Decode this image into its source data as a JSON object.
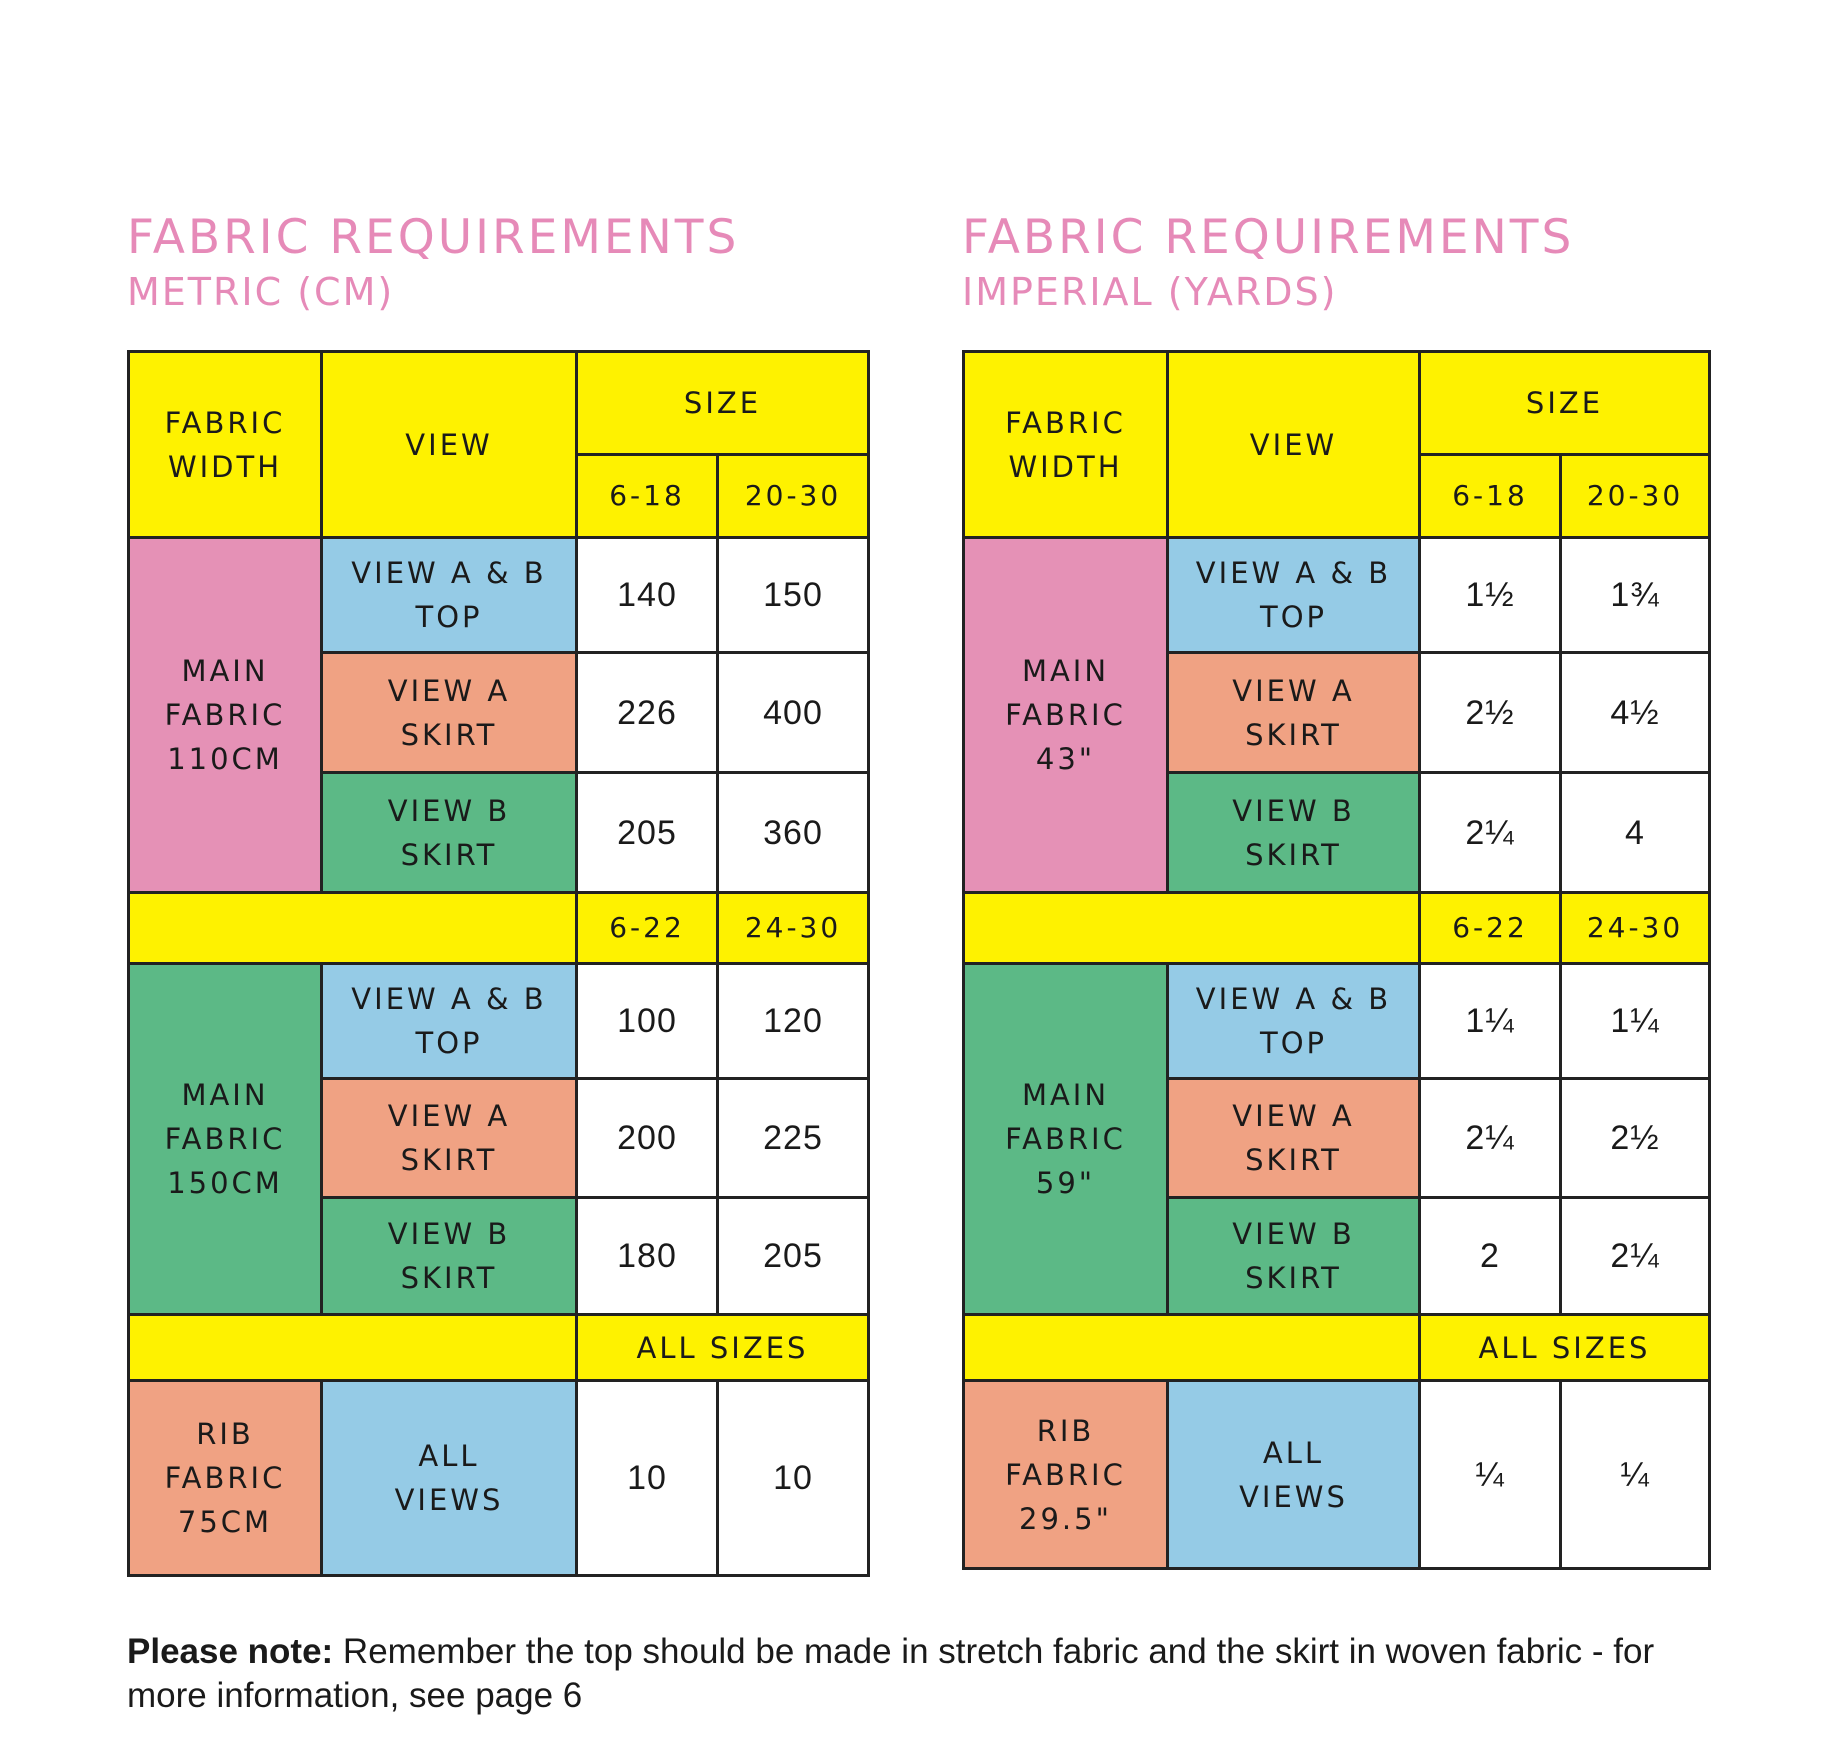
{
  "metric": {
    "title": "FABRIC REQUIREMENTS",
    "subtitle": "METRIC (CM)",
    "headers": {
      "fabric_width": "FABRIC\nWIDTH",
      "view": "VIEW",
      "size": "SIZE",
      "size_a": "6-18",
      "size_b": "20-30",
      "size_c": "6-22",
      "size_d": "24-30",
      "all_sizes": "ALL SIZES"
    },
    "fabrics": {
      "main_110": "MAIN\nFABRIC\n110CM",
      "main_150": "MAIN\nFABRIC\n150CM",
      "rib": "RIB\nFABRIC\n75CM"
    },
    "views": {
      "ab_top": "VIEW A & B\nTOP",
      "a_skirt": "VIEW A\nSKIRT",
      "b_skirt": "VIEW B\nSKIRT",
      "all_views": "ALL\nVIEWS"
    },
    "values": {
      "m110_ab_top": [
        "140",
        "150"
      ],
      "m110_a_skirt": [
        "226",
        "400"
      ],
      "m110_b_skirt": [
        "205",
        "360"
      ],
      "m150_ab_top": [
        "100",
        "120"
      ],
      "m150_a_skirt": [
        "200",
        "225"
      ],
      "m150_b_skirt": [
        "180",
        "205"
      ],
      "rib_all": [
        "10",
        "10"
      ]
    }
  },
  "imperial": {
    "title": "FABRIC REQUIREMENTS",
    "subtitle": "IMPERIAL (YARDS)",
    "headers": {
      "fabric_width": "FABRIC\nWIDTH",
      "view": "VIEW",
      "size": "SIZE",
      "size_a": "6-18",
      "size_b": "20-30",
      "size_c": "6-22",
      "size_d": "24-30",
      "all_sizes": "ALL SIZES"
    },
    "fabrics": {
      "main_110": "MAIN\nFABRIC\n43\"",
      "main_150": "MAIN\nFABRIC\n59\"",
      "rib": "RIB\nFABRIC\n29.5\""
    },
    "views": {
      "ab_top": "VIEW A & B\nTOP",
      "a_skirt": "VIEW A\nSKIRT",
      "b_skirt": "VIEW B\nSKIRT",
      "all_views": "ALL\nVIEWS"
    },
    "values": {
      "m110_ab_top": [
        "1½",
        "1¾"
      ],
      "m110_a_skirt": [
        "2½",
        "4½"
      ],
      "m110_b_skirt": [
        "2¼",
        "4"
      ],
      "m150_ab_top": [
        "1¼",
        "1¼"
      ],
      "m150_a_skirt": [
        "2¼",
        "2½"
      ],
      "m150_b_skirt": [
        "2",
        "2¼"
      ],
      "rib_all": [
        "¼",
        "¼"
      ]
    }
  },
  "note": {
    "bold": "Please note:",
    "text": " Remember the top should be made in stretch fabric and the skirt in woven fabric - for more information, see page 6"
  },
  "colors": {
    "title": "#e68ab8",
    "yellow": "#fef200",
    "pink": "#e591b6",
    "blue": "#95cbe6",
    "orange": "#f0a283",
    "green": "#5cb986"
  }
}
